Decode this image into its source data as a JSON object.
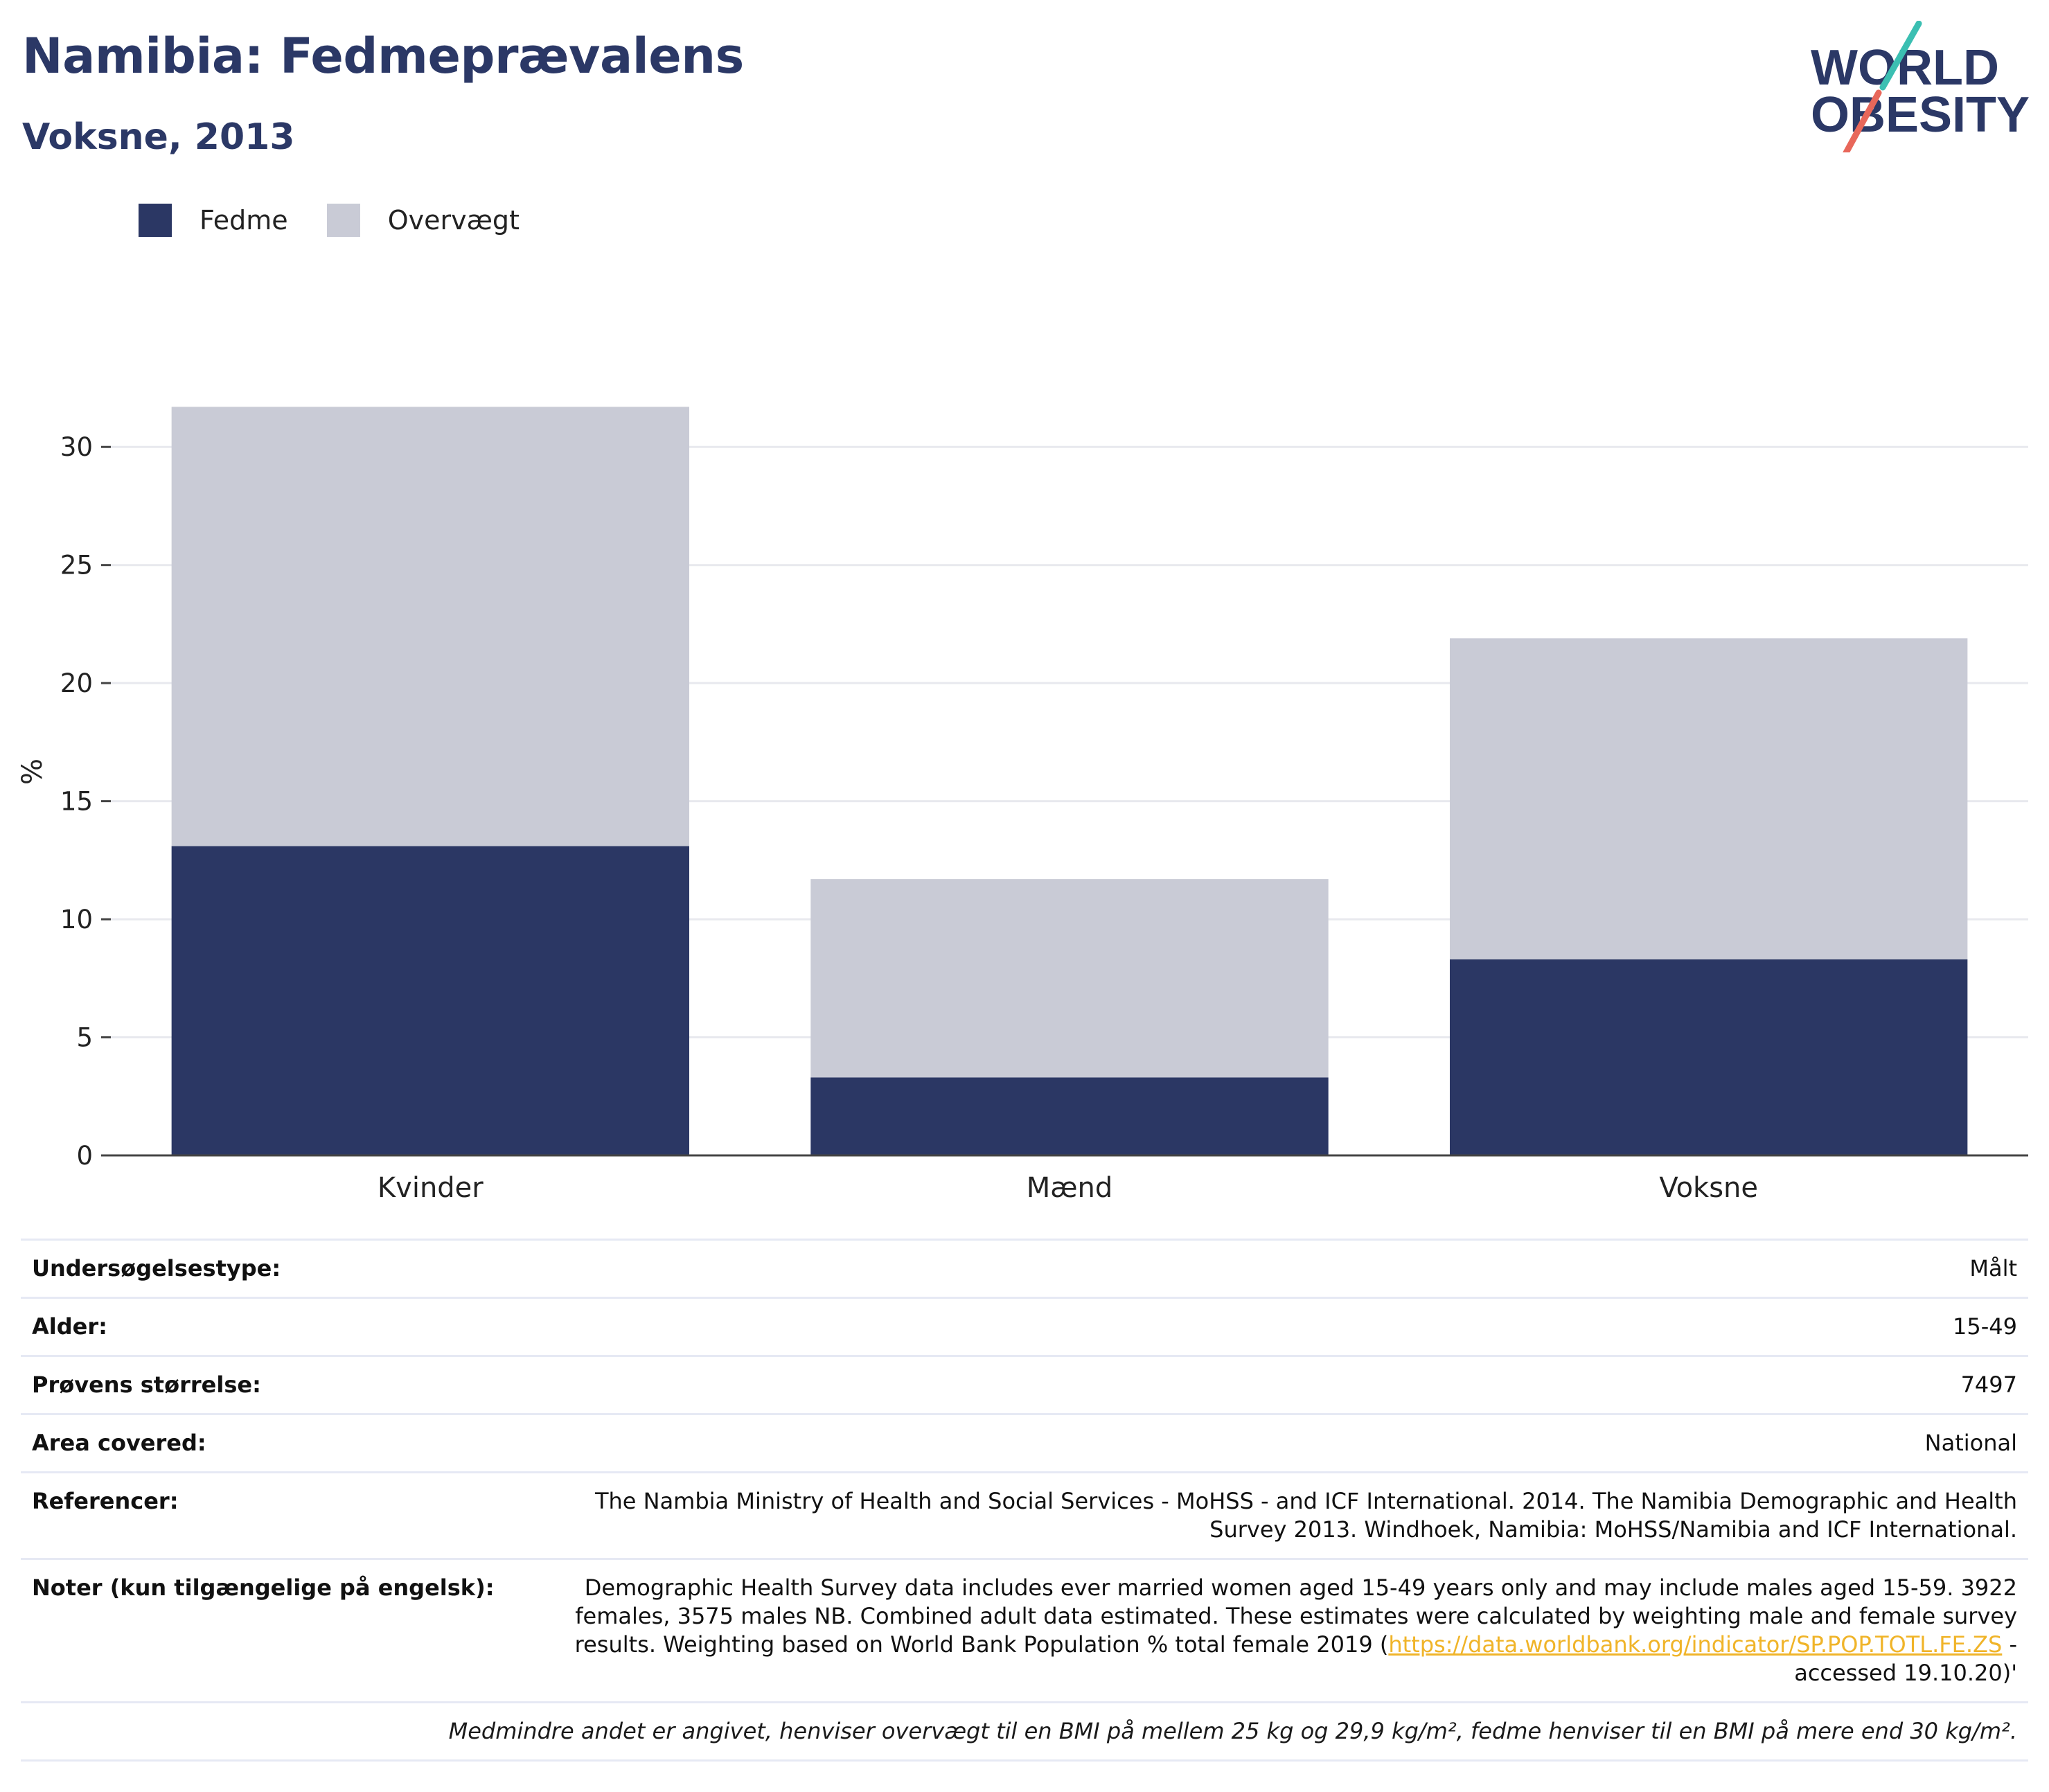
{
  "header": {
    "title": "Namibia: Fedmeprævalens",
    "subtitle": "Voksne, 2013"
  },
  "logo": {
    "line1": "WORLD",
    "line2": "OBESITY",
    "text_color": "#2b3866",
    "slash_teal": "#3bbfb2",
    "slash_coral": "#e8675a"
  },
  "legend": {
    "items": [
      {
        "label": "Fedme",
        "color": "#2b3764"
      },
      {
        "label": "Overvægt",
        "color": "#c9cbd6"
      }
    ]
  },
  "chart_data": {
    "type": "bar",
    "stacked": true,
    "categories": [
      "Kvinder",
      "Mænd",
      "Voksne"
    ],
    "series": [
      {
        "name": "Fedme",
        "color": "#2b3764",
        "values": [
          13.1,
          3.3,
          8.3
        ]
      },
      {
        "name": "Overvægt",
        "color": "#c9cbd6",
        "values": [
          18.6,
          8.4,
          13.6
        ]
      }
    ],
    "ylabel": "%",
    "xlabel": "",
    "ylim": [
      0,
      32.5
    ],
    "yticks": [
      0,
      5,
      10,
      15,
      20,
      25,
      30
    ],
    "grid": true,
    "legend_position": "top-left"
  },
  "meta": {
    "rows": [
      {
        "key": "Undersøgelsestype:",
        "value": "Målt"
      },
      {
        "key": "Alder:",
        "value": "15-49"
      },
      {
        "key": "Prøvens størrelse:",
        "value": "7497"
      },
      {
        "key": "Area covered:",
        "value": "National"
      },
      {
        "key": "Referencer:",
        "value": "The Nambia Ministry of Health and Social Services - MoHSS - and ICF International. 2014. The Namibia Demographic and Health Survey 2013. Windhoek, Namibia: MoHSS/Namibia and ICF International."
      }
    ],
    "notes": {
      "key": "Noter (kun tilgængelige på engelsk):",
      "text_before": "Demographic Health Survey data includes ever married women aged 15-49 years only and may include males aged 15-59. 3922 females, 3575 males NB. Combined adult data estimated. These estimates were calculated by weighting male and female survey results. Weighting based on World Bank Population % total female 2019 (",
      "link": "https://data.worldbank.org/indicator/SP.POP.TOTL.FE.ZS",
      "text_after": " - accessed 19.10.20)'"
    },
    "footnote": "Medmindre andet er angivet, henviser overvægt til en BMI på mellem 25 kg og 29,9 kg/m², fedme henviser til en BMI på mere end 30 kg/m²."
  }
}
